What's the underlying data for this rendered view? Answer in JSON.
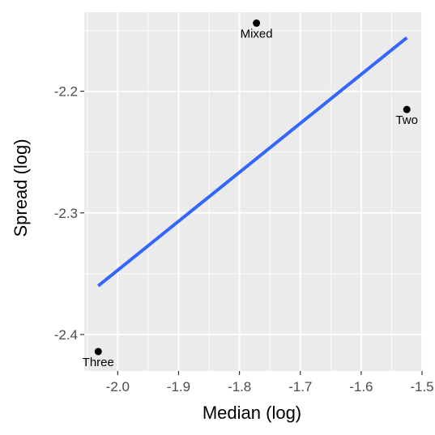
{
  "chart_data": {
    "type": "scatter",
    "title": "",
    "xlabel": "Median (log)",
    "ylabel": "Spread (log)",
    "xlim": [
      -2.055,
      -1.5
    ],
    "ylim": [
      -2.43,
      -2.135
    ],
    "x_ticks": [
      -2.0,
      -1.9,
      -1.8,
      -1.7,
      -1.6,
      -1.5
    ],
    "x_tick_labels": [
      "-2.0",
      "-1.9",
      "-1.8",
      "-1.7",
      "-1.6",
      "-1.5"
    ],
    "y_ticks": [
      -2.2,
      -2.3,
      -2.4
    ],
    "y_tick_labels": [
      "-2.2",
      "-2.3",
      "-2.4"
    ],
    "grid": true,
    "points": [
      {
        "label": "Mixed",
        "x": -1.772,
        "y": -2.144
      },
      {
        "label": "Two",
        "x": -1.525,
        "y": -2.215
      },
      {
        "label": "Three",
        "x": -2.032,
        "y": -2.414
      }
    ],
    "fit_line": {
      "x": [
        -2.032,
        -1.525
      ],
      "y": [
        -2.36,
        -2.156
      ]
    },
    "colors": {
      "panel_background": "#ebebeb",
      "grid": "#ffffff",
      "points": "#000000",
      "fit_line": "#3366ff"
    }
  }
}
